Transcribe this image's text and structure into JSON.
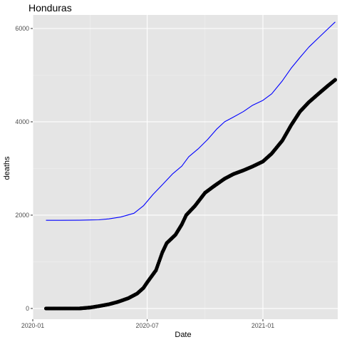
{
  "chart_data": {
    "type": "line",
    "title": "Honduras",
    "xlabel": "Date",
    "ylabel": "deaths",
    "x_range": [
      "2020-01-01",
      "2021-04-30"
    ],
    "ylim": [
      -230,
      6290
    ],
    "x_ticks": [
      {
        "date": "2020-01-01",
        "label": "2020-01"
      },
      {
        "date": "2020-07-01",
        "label": "2020-07"
      },
      {
        "date": "2021-01-01",
        "label": "2021-01"
      }
    ],
    "y_ticks": [
      0,
      2000,
      4000,
      6000
    ],
    "grid": true,
    "background": "#e5e5e5",
    "series": [
      {
        "style": "line",
        "color": "#0000ff",
        "points": [
          [
            "2020-01-22",
            1890
          ],
          [
            "2020-02-15",
            1890
          ],
          [
            "2020-03-15",
            1892
          ],
          [
            "2020-04-15",
            1900
          ],
          [
            "2020-05-01",
            1920
          ],
          [
            "2020-05-20",
            1960
          ],
          [
            "2020-06-10",
            2040
          ],
          [
            "2020-06-25",
            2200
          ],
          [
            "2020-07-10",
            2440
          ],
          [
            "2020-07-25",
            2650
          ],
          [
            "2020-08-10",
            2880
          ],
          [
            "2020-08-25",
            3050
          ],
          [
            "2020-09-05",
            3250
          ],
          [
            "2020-09-20",
            3420
          ],
          [
            "2020-10-05",
            3620
          ],
          [
            "2020-10-20",
            3850
          ],
          [
            "2020-11-01",
            4000
          ],
          [
            "2020-11-15",
            4100
          ],
          [
            "2020-12-01",
            4220
          ],
          [
            "2020-12-15",
            4350
          ],
          [
            "2021-01-01",
            4460
          ],
          [
            "2021-01-15",
            4600
          ],
          [
            "2021-02-01",
            4880
          ],
          [
            "2021-02-15",
            5150
          ],
          [
            "2021-03-01",
            5380
          ],
          [
            "2021-03-15",
            5600
          ],
          [
            "2021-04-01",
            5820
          ],
          [
            "2021-04-15",
            6000
          ],
          [
            "2021-04-26",
            6140
          ]
        ]
      },
      {
        "style": "points",
        "color": "#000000",
        "points": [
          [
            "2020-01-22",
            0
          ],
          [
            "2020-02-15",
            0
          ],
          [
            "2020-03-15",
            0
          ],
          [
            "2020-04-01",
            20
          ],
          [
            "2020-04-15",
            50
          ],
          [
            "2020-05-01",
            90
          ],
          [
            "2020-05-15",
            140
          ],
          [
            "2020-06-01",
            220
          ],
          [
            "2020-06-15",
            320
          ],
          [
            "2020-06-25",
            440
          ],
          [
            "2020-07-01",
            560
          ],
          [
            "2020-07-15",
            820
          ],
          [
            "2020-07-25",
            1200
          ],
          [
            "2020-08-01",
            1400
          ],
          [
            "2020-08-15",
            1580
          ],
          [
            "2020-08-25",
            1800
          ],
          [
            "2020-09-01",
            2000
          ],
          [
            "2020-09-15",
            2200
          ],
          [
            "2020-10-01",
            2480
          ],
          [
            "2020-10-15",
            2620
          ],
          [
            "2020-11-01",
            2780
          ],
          [
            "2020-11-15",
            2880
          ],
          [
            "2020-12-01",
            2960
          ],
          [
            "2020-12-15",
            3040
          ],
          [
            "2021-01-01",
            3150
          ],
          [
            "2021-01-15",
            3320
          ],
          [
            "2021-02-01",
            3600
          ],
          [
            "2021-02-15",
            3930
          ],
          [
            "2021-03-01",
            4220
          ],
          [
            "2021-03-15",
            4420
          ],
          [
            "2021-04-01",
            4620
          ],
          [
            "2021-04-15",
            4780
          ],
          [
            "2021-04-26",
            4900
          ]
        ]
      }
    ]
  }
}
